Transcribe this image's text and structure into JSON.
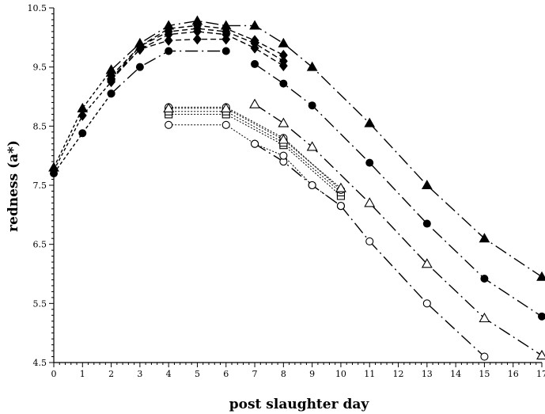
{
  "chart_data": {
    "type": "line",
    "title": "",
    "xlabel": "post slaughter day",
    "ylabel": "redness (a*)",
    "xlim": [
      0,
      17
    ],
    "ylim": [
      4.5,
      10.5
    ],
    "x_ticks": [
      0,
      1,
      2,
      3,
      4,
      5,
      6,
      7,
      8,
      9,
      10,
      11,
      12,
      13,
      14,
      15,
      16,
      17
    ],
    "x_tick_labels": [
      "0",
      "1",
      "2",
      "3",
      "4",
      "5",
      "6",
      "7",
      "8",
      "9",
      "10",
      "11",
      "12",
      "13",
      "14",
      "15",
      "16",
      "17"
    ],
    "y_ticks": [
      4.5,
      5.5,
      6.5,
      7.5,
      8.5,
      9.5,
      10.5
    ],
    "y_tick_labels": [
      "4.5",
      "5.5",
      "6.5",
      "7.5",
      "8.5",
      "9.5",
      "10.5"
    ],
    "grid": false,
    "legend": "none",
    "series": [
      {
        "marker": "diamond-filled",
        "line": "short-dash",
        "points": [
          [
            0,
            7.75
          ],
          [
            1,
            8.68
          ],
          [
            2,
            9.25
          ]
        ]
      },
      {
        "marker": "triangle-filled",
        "line": "short-dash",
        "points": [
          [
            0,
            7.8
          ],
          [
            1,
            8.8
          ],
          [
            2,
            9.45
          ]
        ]
      },
      {
        "marker": "circle-filled",
        "line": "short-dash",
        "points": [
          [
            0,
            7.7
          ],
          [
            1,
            8.38
          ],
          [
            2,
            9.05
          ]
        ]
      },
      {
        "marker": "diamond-filled",
        "line": "dash",
        "points": [
          [
            2,
            9.3
          ],
          [
            3,
            9.85
          ],
          [
            4,
            10.15
          ],
          [
            5,
            10.2
          ],
          [
            6,
            10.15
          ],
          [
            7,
            9.95
          ],
          [
            8,
            9.7
          ]
        ]
      },
      {
        "marker": "diamond-filled",
        "line": "dash",
        "points": [
          [
            2,
            9.35
          ],
          [
            3,
            9.85
          ],
          [
            4,
            10.1
          ],
          [
            5,
            10.15
          ],
          [
            6,
            10.1
          ],
          [
            7,
            9.9
          ],
          [
            8,
            9.6
          ]
        ]
      },
      {
        "marker": "diamond-filled",
        "line": "dash",
        "points": [
          [
            2,
            9.28
          ],
          [
            3,
            9.8
          ],
          [
            4,
            10.05
          ],
          [
            5,
            10.1
          ],
          [
            6,
            10.05
          ],
          [
            7,
            9.82
          ],
          [
            8,
            9.52
          ]
        ]
      },
      {
        "marker": "diamond-filled",
        "line": "dash",
        "points": [
          [
            2,
            9.3
          ],
          [
            3,
            9.8
          ],
          [
            4,
            9.95
          ],
          [
            5,
            9.97
          ],
          [
            6,
            9.97
          ]
        ]
      },
      {
        "marker": "triangle-filled",
        "line": "long-dash",
        "points": [
          [
            2,
            9.45
          ],
          [
            3,
            9.9
          ],
          [
            4,
            10.2
          ],
          [
            5,
            10.28
          ],
          [
            6,
            10.2
          ],
          [
            7,
            10.2
          ],
          [
            8,
            9.9
          ],
          [
            9,
            9.5
          ],
          [
            11,
            8.55
          ],
          [
            13,
            7.5
          ],
          [
            15,
            6.6
          ],
          [
            17,
            5.95
          ]
        ]
      },
      {
        "marker": "circle-filled",
        "line": "long-dash",
        "points": [
          [
            2,
            9.05
          ],
          [
            3,
            9.5
          ],
          [
            4,
            9.77
          ],
          [
            6,
            9.77
          ]
        ]
      },
      {
        "marker": "circle-filled",
        "line": "long-dash",
        "points": [
          [
            7,
            9.55
          ],
          [
            8,
            9.22
          ],
          [
            9,
            8.85
          ],
          [
            11,
            7.88
          ],
          [
            13,
            6.85
          ],
          [
            15,
            5.92
          ],
          [
            17,
            5.28
          ]
        ]
      },
      {
        "marker": "triangle-open",
        "line": "long-dash",
        "points": [
          [
            7,
            8.87
          ],
          [
            8,
            8.55
          ],
          [
            9,
            8.15
          ],
          [
            11,
            7.2
          ],
          [
            13,
            6.17
          ],
          [
            15,
            5.25
          ],
          [
            17,
            4.62
          ]
        ]
      },
      {
        "marker": "circle-open",
        "line": "long-dash",
        "points": [
          [
            7,
            8.2
          ],
          [
            8,
            7.9
          ],
          [
            9,
            7.5
          ],
          [
            10,
            7.15
          ]
        ]
      },
      {
        "marker": "circle-open",
        "line": "long-dash",
        "points": [
          [
            10,
            7.15
          ],
          [
            11,
            6.55
          ],
          [
            13,
            5.5
          ],
          [
            15,
            4.6
          ]
        ]
      },
      {
        "marker": "circle-open",
        "line": "dot",
        "points": [
          [
            4,
            8.52
          ],
          [
            6,
            8.52
          ],
          [
            7,
            8.2
          ],
          [
            8,
            8.0
          ],
          [
            9,
            7.5
          ],
          [
            10,
            7.15
          ]
        ]
      },
      {
        "marker": "square-open",
        "line": "dot",
        "points": [
          [
            4,
            8.7
          ],
          [
            6,
            8.7
          ],
          [
            8,
            8.18
          ],
          [
            10,
            7.32
          ]
        ]
      },
      {
        "marker": "square-open",
        "line": "dot",
        "points": [
          [
            4,
            8.75
          ],
          [
            6,
            8.75
          ],
          [
            8,
            8.22
          ],
          [
            10,
            7.38
          ]
        ]
      },
      {
        "marker": "circle-open",
        "line": "dot",
        "points": [
          [
            4,
            8.82
          ],
          [
            6,
            8.82
          ],
          [
            8,
            8.3
          ],
          [
            10,
            7.42
          ]
        ]
      },
      {
        "marker": "triangle-open",
        "line": "dot",
        "points": [
          [
            4,
            8.8
          ],
          [
            6,
            8.8
          ],
          [
            8,
            8.27
          ],
          [
            10,
            7.45
          ]
        ]
      }
    ]
  }
}
